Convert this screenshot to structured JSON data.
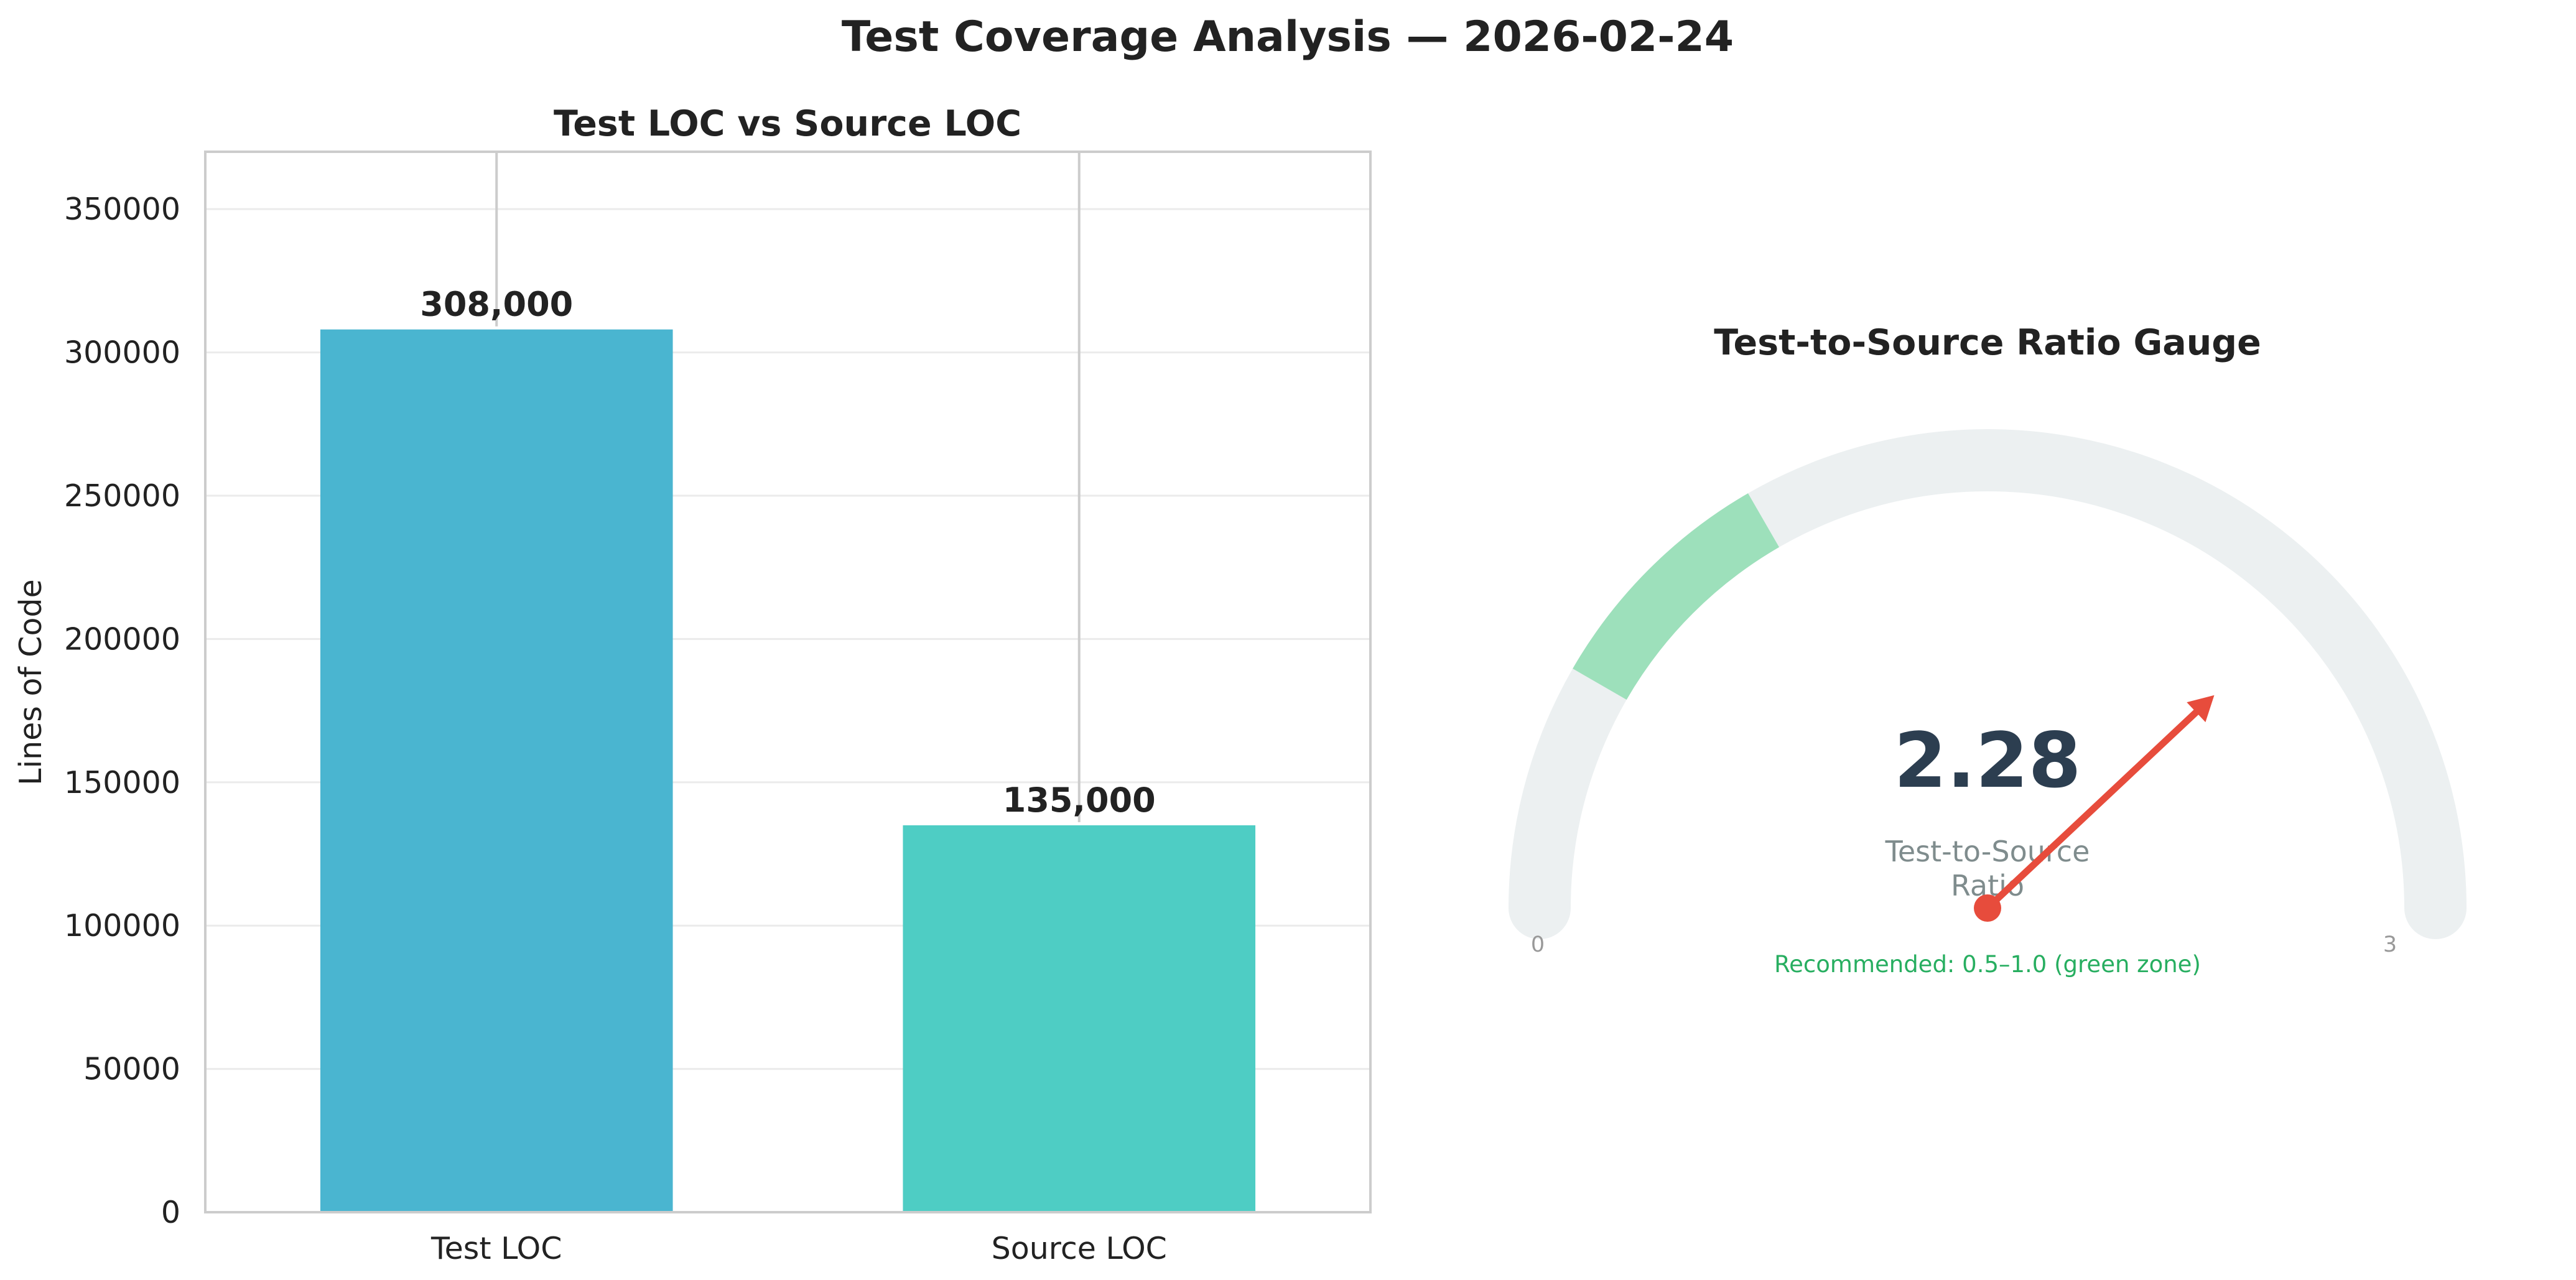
{
  "suptitle": "Test Coverage Analysis — 2026-02-24",
  "chart_data": [
    {
      "type": "bar",
      "title": "Test LOC vs Source LOC",
      "xlabel": "",
      "ylabel": "Lines of Code",
      "categories": [
        "Test LOC",
        "Source LOC"
      ],
      "values": [
        308000,
        135000
      ],
      "value_labels": [
        "308,000",
        "135,000"
      ],
      "bar_colors": [
        "#4ab5d0",
        "#4ecdc4"
      ],
      "ylim": [
        0,
        370000
      ],
      "yticks": [
        0,
        50000,
        100000,
        150000,
        200000,
        250000,
        300000,
        350000
      ],
      "ytick_labels": [
        "0",
        "50000",
        "100000",
        "150000",
        "200000",
        "250000",
        "300000",
        "350000"
      ],
      "grid": "horizontal"
    },
    {
      "type": "gauge",
      "title": "Test-to-Source Ratio Gauge",
      "value": 2.28,
      "value_label": "2.28",
      "caption_lines": [
        "Test-to-Source",
        "Ratio"
      ],
      "min": 0,
      "max": 3,
      "min_label": "0",
      "max_label": "3",
      "recommended_range": [
        0.5,
        1.0
      ],
      "note": "Recommended: 0.5–1.0 (green zone)",
      "track_color": "#ecf0f1",
      "zone_color": "#9de0bb",
      "needle_color": "#e74c3c",
      "value_color": "#2c3e50"
    }
  ]
}
